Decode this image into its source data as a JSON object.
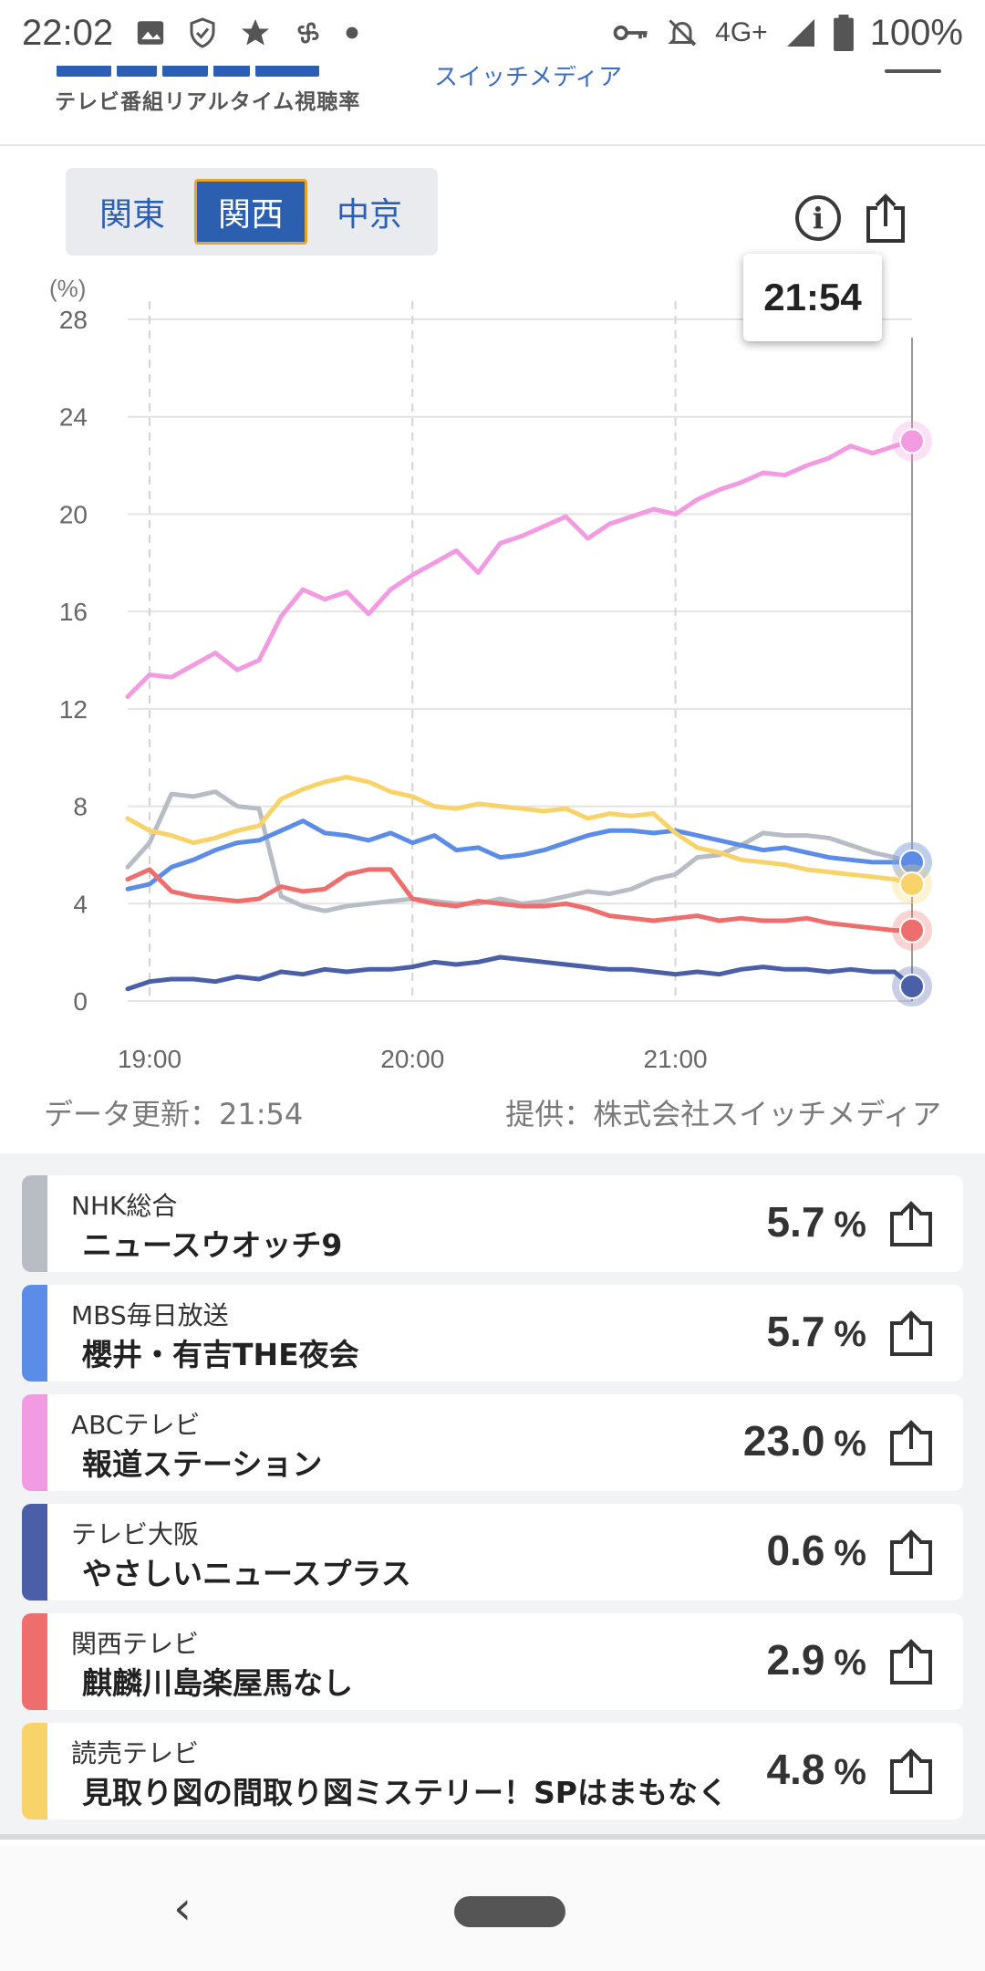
{
  "status_bar": {
    "time": "22:02",
    "network": "4G+",
    "battery": "100%",
    "icons": [
      "image-icon",
      "shield-check-icon",
      "star-icon",
      "pinwheel-icon",
      "dot-icon",
      "key-icon",
      "bell-off-icon",
      "signal-icon",
      "battery-icon"
    ]
  },
  "header": {
    "logo_subtitle": "テレビ番組リアルタイム視聴率",
    "partner_text": "スイッチメディア"
  },
  "region_tabs": [
    {
      "label": "関東",
      "active": false
    },
    {
      "label": "関西",
      "active": true
    },
    {
      "label": "中京",
      "active": false
    }
  ],
  "tooltip_time": "21:54",
  "chart_data": {
    "type": "line",
    "ylabel": "(%)",
    "ylim": [
      0,
      28
    ],
    "y_ticks": [
      "0",
      "4",
      "8",
      "12",
      "16",
      "20",
      "24",
      "28"
    ],
    "x_ticks": [
      "19:00",
      "20:00",
      "21:00"
    ],
    "x_range": [
      "18:55",
      "21:54"
    ],
    "grid": true,
    "cursor_time": "21:54",
    "series": [
      {
        "name": "NHK総合",
        "color": "#b8bcc4",
        "x": [
          "18:55",
          "19:00",
          "19:05",
          "19:10",
          "19:15",
          "19:20",
          "19:25",
          "19:30",
          "19:35",
          "19:40",
          "19:45",
          "19:50",
          "19:55",
          "20:00",
          "20:05",
          "20:10",
          "20:15",
          "20:20",
          "20:25",
          "20:30",
          "20:35",
          "20:40",
          "20:45",
          "20:50",
          "20:55",
          "21:00",
          "21:05",
          "21:10",
          "21:15",
          "21:20",
          "21:25",
          "21:30",
          "21:35",
          "21:40",
          "21:45",
          "21:50",
          "21:54"
        ],
        "values": [
          5.5,
          6.5,
          8.5,
          8.4,
          8.6,
          8.0,
          7.9,
          4.3,
          3.9,
          3.7,
          3.9,
          4.0,
          4.1,
          4.2,
          4.1,
          4.0,
          4.0,
          4.2,
          4.0,
          4.1,
          4.3,
          4.5,
          4.4,
          4.6,
          5.0,
          5.2,
          5.9,
          6.0,
          6.4,
          6.9,
          6.8,
          6.8,
          6.7,
          6.4,
          6.1,
          5.9,
          5.7
        ]
      },
      {
        "name": "MBS毎日放送",
        "color": "#5b8de8",
        "x": [
          "18:55",
          "19:00",
          "19:05",
          "19:10",
          "19:15",
          "19:20",
          "19:25",
          "19:30",
          "19:35",
          "19:40",
          "19:45",
          "19:50",
          "19:55",
          "20:00",
          "20:05",
          "20:10",
          "20:15",
          "20:20",
          "20:25",
          "20:30",
          "20:35",
          "20:40",
          "20:45",
          "20:50",
          "20:55",
          "21:00",
          "21:05",
          "21:10",
          "21:15",
          "21:20",
          "21:25",
          "21:30",
          "21:35",
          "21:40",
          "21:45",
          "21:50",
          "21:54"
        ],
        "values": [
          4.6,
          4.8,
          5.5,
          5.8,
          6.2,
          6.5,
          6.6,
          7.0,
          7.4,
          6.9,
          6.8,
          6.6,
          6.9,
          6.5,
          6.8,
          6.2,
          6.3,
          5.9,
          6.0,
          6.2,
          6.5,
          6.8,
          7.0,
          7.0,
          6.9,
          7.0,
          6.8,
          6.6,
          6.4,
          6.2,
          6.3,
          6.1,
          5.9,
          5.8,
          5.7,
          5.7,
          5.7
        ]
      },
      {
        "name": "ABCテレビ",
        "color": "#f29ae2",
        "x": [
          "18:55",
          "19:00",
          "19:05",
          "19:10",
          "19:15",
          "19:20",
          "19:25",
          "19:30",
          "19:35",
          "19:40",
          "19:45",
          "19:50",
          "19:55",
          "20:00",
          "20:05",
          "20:10",
          "20:15",
          "20:20",
          "20:25",
          "20:30",
          "20:35",
          "20:40",
          "20:45",
          "20:50",
          "20:55",
          "21:00",
          "21:05",
          "21:10",
          "21:15",
          "21:20",
          "21:25",
          "21:30",
          "21:35",
          "21:40",
          "21:45",
          "21:50",
          "21:54"
        ],
        "values": [
          12.5,
          13.4,
          13.3,
          13.8,
          14.3,
          13.6,
          14.0,
          15.8,
          16.9,
          16.5,
          16.8,
          15.9,
          16.9,
          17.5,
          18.0,
          18.5,
          17.6,
          18.8,
          19.1,
          19.5,
          19.9,
          19.0,
          19.6,
          19.9,
          20.2,
          20.0,
          20.6,
          21.0,
          21.3,
          21.7,
          21.6,
          22.0,
          22.3,
          22.8,
          22.5,
          22.8,
          23.0
        ]
      },
      {
        "name": "テレビ大阪",
        "color": "#4a5fa8",
        "x": [
          "18:55",
          "19:00",
          "19:05",
          "19:10",
          "19:15",
          "19:20",
          "19:25",
          "19:30",
          "19:35",
          "19:40",
          "19:45",
          "19:50",
          "19:55",
          "20:00",
          "20:05",
          "20:10",
          "20:15",
          "20:20",
          "20:25",
          "20:30",
          "20:35",
          "20:40",
          "20:45",
          "20:50",
          "20:55",
          "21:00",
          "21:05",
          "21:10",
          "21:15",
          "21:20",
          "21:25",
          "21:30",
          "21:35",
          "21:40",
          "21:45",
          "21:50",
          "21:54"
        ],
        "values": [
          0.5,
          0.8,
          0.9,
          0.9,
          0.8,
          1.0,
          0.9,
          1.2,
          1.1,
          1.3,
          1.2,
          1.3,
          1.3,
          1.4,
          1.6,
          1.5,
          1.6,
          1.8,
          1.7,
          1.6,
          1.5,
          1.4,
          1.3,
          1.3,
          1.2,
          1.1,
          1.2,
          1.1,
          1.3,
          1.4,
          1.3,
          1.3,
          1.2,
          1.3,
          1.2,
          1.2,
          0.6
        ]
      },
      {
        "name": "関西テレビ",
        "color": "#ee6e6e",
        "x": [
          "18:55",
          "19:00",
          "19:05",
          "19:10",
          "19:15",
          "19:20",
          "19:25",
          "19:30",
          "19:35",
          "19:40",
          "19:45",
          "19:50",
          "19:55",
          "20:00",
          "20:05",
          "20:10",
          "20:15",
          "20:20",
          "20:25",
          "20:30",
          "20:35",
          "20:40",
          "20:45",
          "20:50",
          "20:55",
          "21:00",
          "21:05",
          "21:10",
          "21:15",
          "21:20",
          "21:25",
          "21:30",
          "21:35",
          "21:40",
          "21:45",
          "21:50",
          "21:54"
        ],
        "values": [
          5.0,
          5.4,
          4.5,
          4.3,
          4.2,
          4.1,
          4.2,
          4.7,
          4.5,
          4.6,
          5.2,
          5.4,
          5.4,
          4.2,
          4.0,
          3.9,
          4.1,
          4.0,
          3.9,
          3.9,
          4.0,
          3.8,
          3.5,
          3.4,
          3.3,
          3.4,
          3.5,
          3.3,
          3.4,
          3.3,
          3.3,
          3.4,
          3.2,
          3.1,
          3.0,
          2.9,
          2.9
        ]
      },
      {
        "name": "読売テレビ",
        "color": "#f8d36a",
        "x": [
          "18:55",
          "19:00",
          "19:05",
          "19:10",
          "19:15",
          "19:20",
          "19:25",
          "19:30",
          "19:35",
          "19:40",
          "19:45",
          "19:50",
          "19:55",
          "20:00",
          "20:05",
          "20:10",
          "20:15",
          "20:20",
          "20:25",
          "20:30",
          "20:35",
          "20:40",
          "20:45",
          "20:50",
          "20:55",
          "21:00",
          "21:05",
          "21:10",
          "21:15",
          "21:20",
          "21:25",
          "21:30",
          "21:35",
          "21:40",
          "21:45",
          "21:50",
          "21:54"
        ],
        "values": [
          7.5,
          7.0,
          6.8,
          6.5,
          6.7,
          7.0,
          7.2,
          8.3,
          8.7,
          9.0,
          9.2,
          9.0,
          8.6,
          8.4,
          8.0,
          7.9,
          8.1,
          8.0,
          7.9,
          7.8,
          7.9,
          7.5,
          7.7,
          7.6,
          7.7,
          6.9,
          6.3,
          6.1,
          5.8,
          5.7,
          5.6,
          5.4,
          5.3,
          5.2,
          5.1,
          5.0,
          4.8
        ]
      }
    ]
  },
  "data_update": "データ更新：21:54",
  "provider": "提供：株式会社スイッチメディア",
  "cards": [
    {
      "station": "NHK総合",
      "program": "ニュースウオッチ9",
      "value": "5.7",
      "unit": "%",
      "color": "#b8bcc4"
    },
    {
      "station": "MBS毎日放送",
      "program": "櫻井・有吉THE夜会",
      "value": "5.7",
      "unit": "%",
      "color": "#5b8de8"
    },
    {
      "station": "ABCテレビ",
      "program": "報道ステーション",
      "value": "23.0",
      "unit": "%",
      "color": "#f29ae2"
    },
    {
      "station": "テレビ大阪",
      "program": "やさしいニュースプラス",
      "value": "0.6",
      "unit": "%",
      "color": "#4a5fa8"
    },
    {
      "station": "関西テレビ",
      "program": "麒麟川島楽屋馬なし",
      "value": "2.9",
      "unit": "%",
      "color": "#ee6e6e"
    },
    {
      "station": "読売テレビ",
      "program": "見取り図の間取り図ミステリー！SPはまもなく",
      "value": "4.8",
      "unit": "%",
      "color": "#f8d36a"
    }
  ],
  "nav": {
    "back": "‹"
  }
}
